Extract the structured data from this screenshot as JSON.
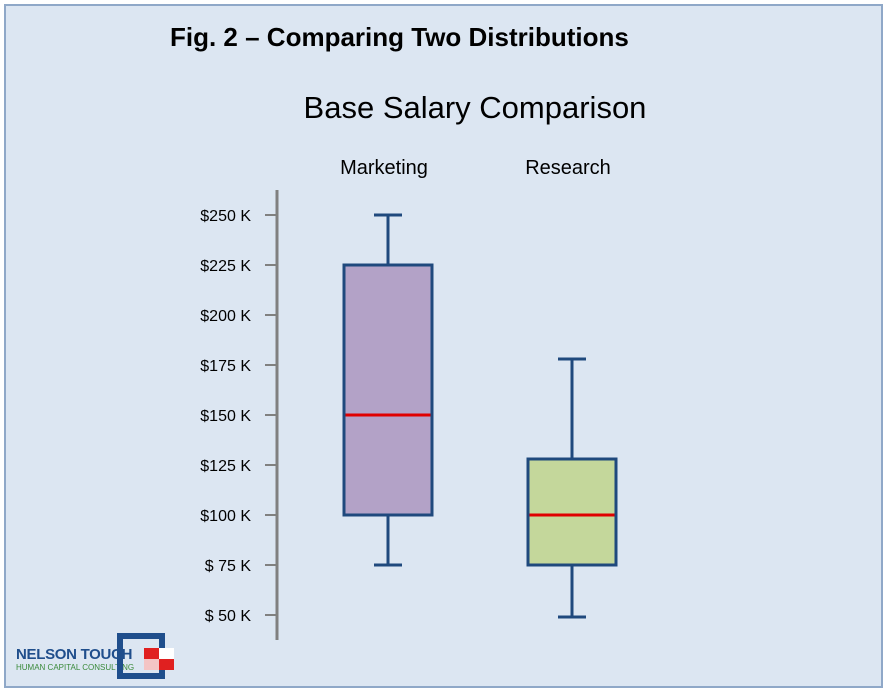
{
  "figure": {
    "title": "Fig. 2 – Comparing Two Distributions"
  },
  "logo": {
    "name": "NELSON TOUCH",
    "tagline": "HUMAN CAPITAL CONSULTING"
  },
  "chart_data": {
    "type": "boxplot",
    "title": "Base Salary Comparison",
    "categories": [
      "Marketing",
      "Research"
    ],
    "series": [
      {
        "category": "Marketing",
        "min": 75,
        "q1": 100,
        "median": 150,
        "q3": 225,
        "max": 250,
        "fill": "#b3a2c7",
        "stroke": "#1f497d"
      },
      {
        "category": "Research",
        "min": 49,
        "q1": 75,
        "median": 100,
        "q3": 128,
        "max": 178,
        "fill": "#c4d79b",
        "stroke": "#1f497d"
      }
    ],
    "y_tick_values": [
      50,
      75,
      100,
      125,
      150,
      175,
      200,
      225,
      250
    ],
    "y_tick_labels": [
      "$  50 K",
      "$  75 K",
      "$100 K",
      "$125 K",
      "$150 K",
      "$175 K",
      "$200 K",
      "$225 K",
      "$250 K"
    ],
    "ylim": [
      50,
      250
    ],
    "median_color": "#e00000",
    "axis_color": "#808080",
    "grid": false,
    "legend": "none"
  }
}
